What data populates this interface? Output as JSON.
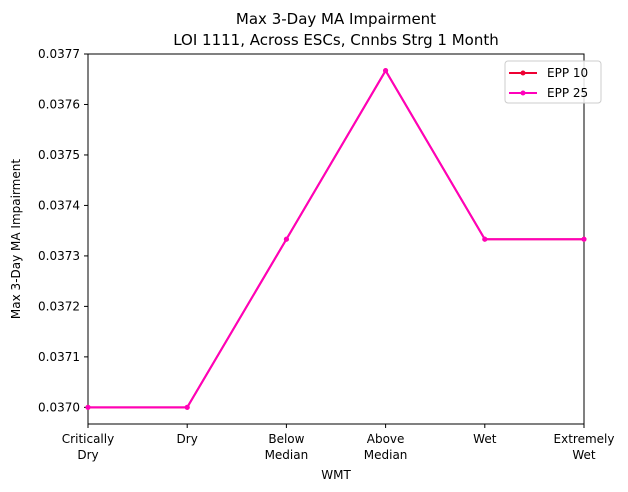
{
  "chart_data": {
    "type": "line",
    "title_line1": "Max 3-Day MA Impairment",
    "title_line2": "LOI 1111, Across ESCs, Cnnbs Strg 1 Month",
    "xlabel": "WMT",
    "ylabel": "Max 3-Day MA Impairment",
    "categories": [
      [
        "Critically",
        "Dry"
      ],
      [
        "Dry"
      ],
      [
        "Below",
        "Median"
      ],
      [
        "Above",
        "Median"
      ],
      [
        "Wet"
      ],
      [
        "Extremely",
        "Wet"
      ]
    ],
    "ylim": [
      0.036967,
      0.0377
    ],
    "yticks": [
      0.037,
      0.0371,
      0.0372,
      0.0373,
      0.0374,
      0.0375,
      0.0376,
      0.0377
    ],
    "ytick_labels": [
      "0.0370",
      "0.0371",
      "0.0372",
      "0.0373",
      "0.0374",
      "0.0375",
      "0.0376",
      "0.0377"
    ],
    "grid": false,
    "legend_position": "top-right",
    "series": [
      {
        "name": "EPP 10",
        "color": "#ee0033",
        "values": [
          0.037,
          0.037,
          0.037333,
          0.037667,
          0.037333,
          0.037333
        ]
      },
      {
        "name": "EPP 25",
        "color": "#ff00bb",
        "values": [
          0.037,
          0.037,
          0.037333,
          0.037667,
          0.037333,
          0.037333
        ]
      }
    ]
  }
}
